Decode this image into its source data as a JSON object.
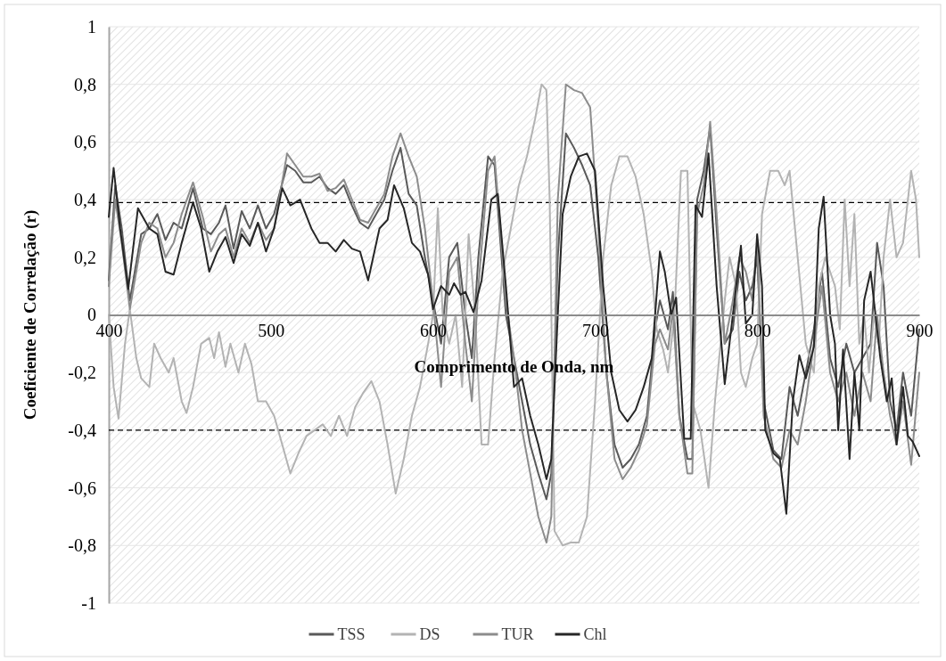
{
  "chart_data": {
    "type": "line",
    "xlabel": "Comprimento de Onda, nm",
    "ylabel": "Coeficiente de Correlação (r)",
    "xlim": [
      400,
      900
    ],
    "xticks": [
      400,
      500,
      600,
      700,
      800,
      900
    ],
    "ylim": [
      -1,
      1
    ],
    "yticks": [
      {
        "value": -1,
        "label": "-1"
      },
      {
        "value": -0.8,
        "label": "-0,8"
      },
      {
        "value": -0.6,
        "label": "-0,6"
      },
      {
        "value": -0.4,
        "label": "-0,4"
      },
      {
        "value": -0.2,
        "label": "-0,2"
      },
      {
        "value": 0,
        "label": "0"
      },
      {
        "value": 0.2,
        "label": "0,2"
      },
      {
        "value": 0.4,
        "label": "0,4"
      },
      {
        "value": 0.6,
        "label": "0,6"
      },
      {
        "value": 0.8,
        "label": "0,8"
      },
      {
        "value": 1,
        "label": "1"
      }
    ],
    "grid": "y",
    "legend": "bottom",
    "line_style": "solid",
    "marker": "none",
    "ref_lines": [
      {
        "axis": "y",
        "value": 0.39,
        "line_style": "dashed",
        "color": "#000000"
      },
      {
        "axis": "y",
        "value": -0.4,
        "line_style": "dashed",
        "color": "#000000"
      }
    ],
    "series": [
      {
        "name": "TSS",
        "color": "#595959",
        "x": [
          400,
          404,
          408,
          413,
          420,
          425,
          430,
          435,
          440,
          445,
          452,
          458,
          463,
          468,
          472,
          477,
          482,
          487,
          492,
          497,
          502,
          510,
          515,
          520,
          525,
          530,
          535,
          540,
          545,
          550,
          555,
          560,
          565,
          570,
          575,
          580,
          585,
          590,
          595,
          600,
          605,
          610,
          615,
          620,
          624,
          628,
          634,
          638,
          645,
          650,
          655,
          660,
          665,
          670,
          673,
          677,
          682,
          687,
          692,
          697,
          702,
          707,
          712,
          717,
          722,
          727,
          732,
          737,
          740,
          745,
          748,
          752,
          757,
          760,
          763,
          767,
          771,
          775,
          780,
          785,
          789,
          793,
          797,
          800,
          804,
          810,
          815,
          820,
          825,
          830,
          835,
          840,
          845,
          850,
          855,
          860,
          865,
          870,
          874,
          878,
          882,
          886,
          890,
          895,
          900
        ],
        "values": [
          0.12,
          0.45,
          0.3,
          0.05,
          0.28,
          0.3,
          0.35,
          0.26,
          0.32,
          0.3,
          0.44,
          0.3,
          0.28,
          0.32,
          0.38,
          0.23,
          0.36,
          0.3,
          0.38,
          0.3,
          0.35,
          0.52,
          0.5,
          0.46,
          0.46,
          0.48,
          0.44,
          0.42,
          0.45,
          0.38,
          0.32,
          0.3,
          0.35,
          0.4,
          0.5,
          0.58,
          0.42,
          0.38,
          0.2,
          0.05,
          -0.1,
          0.2,
          0.25,
          0.0,
          -0.15,
          0.2,
          0.55,
          0.52,
          0.0,
          -0.15,
          -0.3,
          -0.45,
          -0.55,
          -0.64,
          -0.55,
          0.2,
          0.63,
          0.58,
          0.52,
          0.45,
          0.2,
          -0.2,
          -0.45,
          -0.53,
          -0.5,
          -0.45,
          -0.35,
          -0.05,
          0.05,
          -0.05,
          0.08,
          -0.35,
          -0.5,
          -0.5,
          0.4,
          0.5,
          0.65,
          0.3,
          -0.1,
          -0.05,
          0.15,
          0.05,
          0.1,
          0.2,
          -0.3,
          -0.47,
          -0.5,
          -0.25,
          -0.35,
          -0.2,
          -0.05,
          0.15,
          -0.15,
          -0.25,
          -0.1,
          -0.2,
          -0.15,
          -0.1,
          0.25,
          0.1,
          -0.3,
          -0.4,
          -0.2,
          -0.35,
          -0.05
        ]
      },
      {
        "name": "DS",
        "color": "#b3b3b3",
        "x": [
          400,
          403,
          406,
          410,
          413,
          417,
          420,
          425,
          428,
          432,
          437,
          440,
          445,
          448,
          452,
          457,
          462,
          465,
          468,
          472,
          475,
          480,
          484,
          488,
          492,
          497,
          502,
          507,
          512,
          517,
          522,
          527,
          532,
          537,
          542,
          547,
          552,
          557,
          562,
          567,
          572,
          577,
          582,
          587,
          592,
          597,
          600,
          603,
          606,
          610,
          614,
          618,
          622,
          626,
          630,
          634,
          638,
          643,
          648,
          653,
          658,
          663,
          667,
          670,
          672,
          675,
          680,
          685,
          690,
          695,
          700,
          705,
          710,
          715,
          720,
          725,
          730,
          735,
          738,
          742,
          745,
          749,
          753,
          757,
          760,
          765,
          770,
          774,
          780,
          783,
          787,
          790,
          793,
          797,
          800,
          803,
          808,
          813,
          817,
          820,
          825,
          830,
          835,
          838,
          842,
          845,
          848,
          851,
          854,
          857,
          860,
          863,
          866,
          869,
          872,
          875,
          878,
          882,
          886,
          890,
          895,
          898,
          900
        ],
        "values": [
          0.0,
          -0.25,
          -0.36,
          -0.1,
          0.02,
          -0.15,
          -0.22,
          -0.25,
          -0.1,
          -0.15,
          -0.2,
          -0.15,
          -0.3,
          -0.34,
          -0.25,
          -0.1,
          -0.08,
          -0.15,
          -0.06,
          -0.18,
          -0.1,
          -0.2,
          -0.1,
          -0.17,
          -0.3,
          -0.3,
          -0.35,
          -0.45,
          -0.55,
          -0.48,
          -0.42,
          -0.4,
          -0.38,
          -0.42,
          -0.35,
          -0.42,
          -0.32,
          -0.27,
          -0.23,
          -0.3,
          -0.45,
          -0.62,
          -0.5,
          -0.35,
          -0.25,
          -0.1,
          0.0,
          0.37,
          0.0,
          -0.1,
          0.0,
          -0.25,
          0.28,
          0.0,
          -0.45,
          -0.45,
          -0.15,
          0.15,
          0.3,
          0.45,
          0.55,
          0.68,
          0.8,
          0.78,
          0.4,
          -0.75,
          -0.8,
          -0.79,
          -0.79,
          -0.7,
          -0.3,
          0.2,
          0.45,
          0.55,
          0.55,
          0.48,
          0.35,
          0.15,
          -0.05,
          -0.12,
          -0.2,
          0.0,
          0.5,
          0.5,
          -0.3,
          -0.4,
          -0.6,
          -0.3,
          0.05,
          0.2,
          0.1,
          -0.2,
          -0.25,
          -0.15,
          -0.1,
          0.35,
          0.5,
          0.5,
          0.45,
          0.5,
          0.2,
          -0.1,
          -0.2,
          0.1,
          0.2,
          0.15,
          0.1,
          -0.05,
          0.4,
          0.1,
          0.35,
          -0.1,
          0.0,
          -0.2,
          0.0,
          -0.1,
          0.2,
          0.4,
          0.2,
          0.25,
          0.5,
          0.4,
          0.2
        ]
      },
      {
        "name": "TUR",
        "color": "#8c8c8c",
        "x": [
          400,
          404,
          408,
          413,
          420,
          425,
          430,
          435,
          440,
          445,
          452,
          458,
          463,
          468,
          472,
          477,
          482,
          487,
          492,
          497,
          502,
          510,
          515,
          520,
          525,
          530,
          535,
          540,
          545,
          550,
          555,
          560,
          565,
          570,
          575,
          580,
          585,
          590,
          595,
          600,
          605,
          610,
          615,
          620,
          624,
          628,
          634,
          638,
          645,
          650,
          655,
          660,
          665,
          670,
          673,
          677,
          682,
          687,
          692,
          697,
          702,
          707,
          712,
          717,
          722,
          727,
          732,
          737,
          740,
          745,
          748,
          752,
          757,
          760,
          763,
          767,
          771,
          775,
          780,
          785,
          789,
          793,
          797,
          800,
          804,
          810,
          815,
          820,
          825,
          830,
          835,
          840,
          845,
          850,
          855,
          860,
          865,
          870,
          874,
          878,
          882,
          886,
          890,
          895,
          900
        ],
        "values": [
          0.1,
          0.4,
          0.25,
          0.02,
          0.25,
          0.32,
          0.3,
          0.2,
          0.25,
          0.35,
          0.46,
          0.34,
          0.22,
          0.28,
          0.3,
          0.2,
          0.3,
          0.25,
          0.32,
          0.26,
          0.3,
          0.56,
          0.52,
          0.48,
          0.48,
          0.49,
          0.43,
          0.44,
          0.47,
          0.4,
          0.33,
          0.32,
          0.37,
          0.42,
          0.55,
          0.63,
          0.55,
          0.48,
          0.3,
          0.05,
          -0.25,
          0.15,
          0.2,
          -0.1,
          -0.3,
          0.1,
          0.5,
          0.55,
          0.05,
          -0.15,
          -0.4,
          -0.55,
          -0.7,
          -0.79,
          -0.7,
          0.4,
          0.8,
          0.78,
          0.77,
          0.72,
          0.3,
          -0.2,
          -0.5,
          -0.57,
          -0.53,
          -0.47,
          -0.38,
          -0.1,
          -0.05,
          -0.12,
          0.02,
          -0.35,
          -0.55,
          -0.55,
          0.35,
          0.45,
          0.67,
          0.35,
          -0.1,
          0.05,
          0.2,
          0.15,
          0.05,
          0.25,
          -0.35,
          -0.5,
          -0.53,
          -0.4,
          -0.45,
          -0.3,
          -0.1,
          0.1,
          -0.2,
          -0.3,
          -0.2,
          -0.35,
          -0.2,
          -0.3,
          0.0,
          -0.2,
          -0.35,
          -0.45,
          -0.3,
          -0.52,
          -0.2
        ]
      },
      {
        "name": "Chl",
        "color": "#262626",
        "x": [
          400,
          403,
          407,
          412,
          418,
          425,
          430,
          435,
          440,
          445,
          452,
          457,
          462,
          467,
          472,
          477,
          482,
          487,
          492,
          497,
          502,
          507,
          512,
          518,
          525,
          530,
          535,
          540,
          545,
          550,
          555,
          560,
          567,
          572,
          576,
          582,
          587,
          592,
          597,
          600,
          605,
          610,
          613,
          617,
          620,
          625,
          630,
          636,
          640,
          645,
          650,
          655,
          660,
          665,
          670,
          673,
          677,
          680,
          685,
          690,
          695,
          700,
          705,
          710,
          715,
          720,
          725,
          730,
          735,
          740,
          743,
          747,
          750,
          755,
          759,
          762,
          766,
          770,
          775,
          780,
          785,
          790,
          793,
          797,
          800,
          803,
          805,
          810,
          814,
          818,
          822,
          826,
          830,
          835,
          838,
          841,
          845,
          848,
          850,
          853,
          857,
          860,
          863,
          866,
          870,
          873,
          876,
          880,
          883,
          886,
          890,
          893,
          896,
          900
        ],
        "values": [
          0.34,
          0.51,
          0.3,
          0.09,
          0.37,
          0.3,
          0.28,
          0.15,
          0.14,
          0.25,
          0.39,
          0.3,
          0.15,
          0.22,
          0.27,
          0.18,
          0.28,
          0.24,
          0.32,
          0.22,
          0.3,
          0.44,
          0.38,
          0.4,
          0.3,
          0.25,
          0.25,
          0.22,
          0.26,
          0.23,
          0.22,
          0.12,
          0.3,
          0.33,
          0.45,
          0.37,
          0.25,
          0.22,
          0.14,
          0.02,
          0.1,
          0.07,
          0.11,
          0.07,
          0.08,
          0.01,
          0.12,
          0.4,
          0.42,
          0.1,
          -0.25,
          -0.22,
          -0.35,
          -0.45,
          -0.57,
          -0.5,
          0.0,
          0.35,
          0.48,
          0.55,
          0.56,
          0.5,
          0.1,
          -0.2,
          -0.33,
          -0.37,
          -0.33,
          -0.25,
          -0.15,
          0.22,
          0.15,
          0.0,
          0.06,
          -0.43,
          -0.43,
          0.38,
          0.34,
          0.56,
          0.1,
          -0.24,
          0.0,
          0.24,
          -0.03,
          0.0,
          0.28,
          0.1,
          -0.4,
          -0.48,
          -0.5,
          -0.69,
          -0.3,
          -0.14,
          -0.22,
          -0.11,
          0.3,
          0.41,
          0.0,
          -0.1,
          -0.4,
          -0.12,
          -0.5,
          -0.2,
          -0.4,
          0.05,
          0.15,
          0.0,
          -0.15,
          -0.3,
          -0.22,
          -0.45,
          -0.25,
          -0.42,
          -0.44,
          -0.49
        ]
      }
    ]
  }
}
